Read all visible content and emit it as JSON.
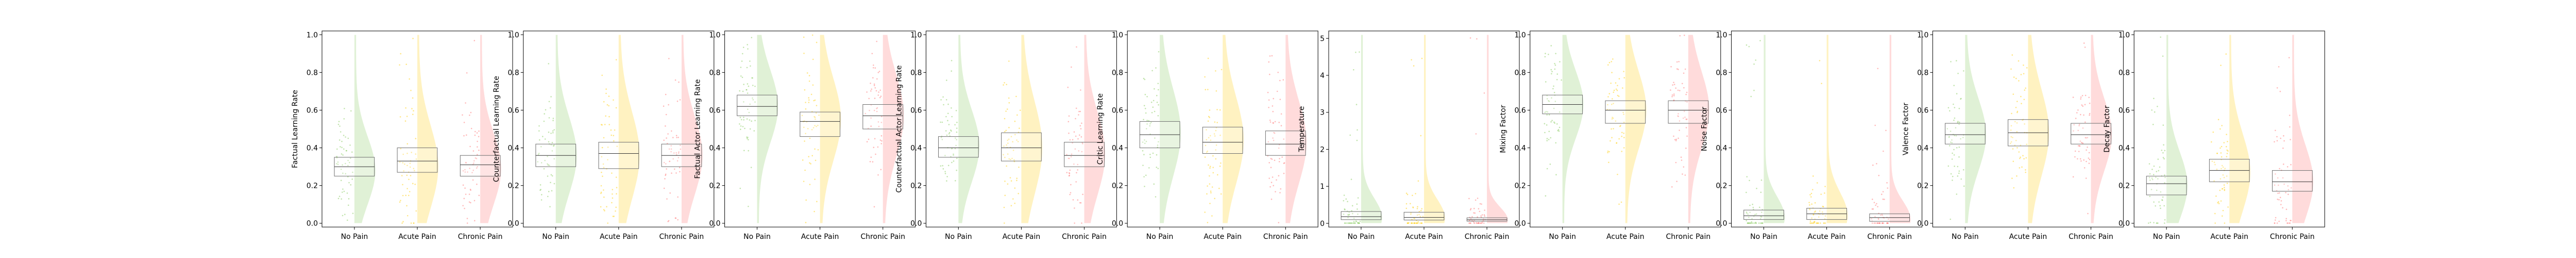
{
  "colors": {
    "No Pain": "#8fce6a",
    "Acute Pain": "#ffd21f",
    "Chronic Pain": "#ff7f7f",
    "box_edge": "#6e6e6e",
    "median": "#333333",
    "axis": "#000000"
  },
  "chart_data": [
    {
      "type": "box",
      "ylabel": "Factual Learning Rate",
      "categories": [
        "No Pain",
        "Acute Pain",
        "Chronic Pain"
      ],
      "ylim": [
        -0.02,
        1.02
      ],
      "yticks": [
        0.0,
        0.2,
        0.4,
        0.6,
        0.8,
        1.0
      ],
      "ytick_labels": [
        "0.0",
        "0.2",
        "0.4",
        "0.6",
        "0.8",
        "1.0"
      ],
      "series": [
        {
          "q1": 0.25,
          "median": 0.3,
          "q3": 0.35,
          "violin_peak": 0.28
        },
        {
          "q1": 0.27,
          "median": 0.33,
          "q3": 0.4,
          "violin_peak": 0.3
        },
        {
          "q1": 0.25,
          "median": 0.31,
          "q3": 0.36,
          "violin_peak": 0.29
        }
      ]
    },
    {
      "type": "box",
      "ylabel": "Counterfactual Learning Rate",
      "categories": [
        "No Pain",
        "Acute Pain",
        "Chronic Pain"
      ],
      "ylim": [
        -0.02,
        1.02
      ],
      "yticks": [
        0.0,
        0.2,
        0.4,
        0.6,
        0.8,
        1.0
      ],
      "ytick_labels": [
        "0.0",
        "0.2",
        "0.4",
        "0.6",
        "0.8",
        "1.0"
      ],
      "series": [
        {
          "q1": 0.3,
          "median": 0.36,
          "q3": 0.42,
          "violin_peak": 0.36
        },
        {
          "q1": 0.29,
          "median": 0.37,
          "q3": 0.43,
          "violin_peak": 0.36
        },
        {
          "q1": 0.3,
          "median": 0.36,
          "q3": 0.42,
          "violin_peak": 0.36
        }
      ]
    },
    {
      "type": "box",
      "ylabel": "Factual Actor Learning Rate",
      "categories": [
        "No Pain",
        "Acute Pain",
        "Chronic Pain"
      ],
      "ylim": [
        -0.02,
        1.02
      ],
      "yticks": [
        0.0,
        0.2,
        0.4,
        0.6,
        0.8,
        1.0
      ],
      "ytick_labels": [
        "0.0",
        "0.2",
        "0.4",
        "0.6",
        "0.8",
        "1.0"
      ],
      "series": [
        {
          "q1": 0.57,
          "median": 0.62,
          "q3": 0.68,
          "violin_peak": 0.62
        },
        {
          "q1": 0.46,
          "median": 0.54,
          "q3": 0.59,
          "violin_peak": 0.55
        },
        {
          "q1": 0.5,
          "median": 0.57,
          "q3": 0.63,
          "violin_peak": 0.57
        }
      ]
    },
    {
      "type": "box",
      "ylabel": "Counterfactual Actor Learning Rate",
      "categories": [
        "No Pain",
        "Acute Pain",
        "Chronic Pain"
      ],
      "ylim": [
        -0.02,
        1.02
      ],
      "yticks": [
        0.0,
        0.2,
        0.4,
        0.6,
        0.8,
        1.0
      ],
      "ytick_labels": [
        "0.0",
        "0.2",
        "0.4",
        "0.6",
        "0.8",
        "1.0"
      ],
      "series": [
        {
          "q1": 0.35,
          "median": 0.4,
          "q3": 0.46,
          "violin_peak": 0.41
        },
        {
          "q1": 0.33,
          "median": 0.4,
          "q3": 0.48,
          "violin_peak": 0.4
        },
        {
          "q1": 0.3,
          "median": 0.36,
          "q3": 0.43,
          "violin_peak": 0.37
        }
      ]
    },
    {
      "type": "box",
      "ylabel": "Critic Learning Rate",
      "categories": [
        "No Pain",
        "Acute Pain",
        "Chronic Pain"
      ],
      "ylim": [
        -0.02,
        1.02
      ],
      "yticks": [
        0.0,
        0.2,
        0.4,
        0.6,
        0.8,
        1.0
      ],
      "ytick_labels": [
        "0.0",
        "0.2",
        "0.4",
        "0.6",
        "0.8",
        "1.0"
      ],
      "series": [
        {
          "q1": 0.4,
          "median": 0.47,
          "q3": 0.54,
          "violin_peak": 0.48
        },
        {
          "q1": 0.37,
          "median": 0.43,
          "q3": 0.51,
          "violin_peak": 0.44
        },
        {
          "q1": 0.36,
          "median": 0.42,
          "q3": 0.49,
          "violin_peak": 0.43
        }
      ]
    },
    {
      "type": "box",
      "ylabel": "Temperature",
      "categories": [
        "No Pain",
        "Acute Pain",
        "Chronic Pain"
      ],
      "ylim": [
        -0.1,
        5.2
      ],
      "yticks": [
        0,
        1,
        2,
        3,
        4,
        5
      ],
      "ytick_labels": [
        "0",
        "1",
        "2",
        "3",
        "4",
        "5"
      ],
      "series": [
        {
          "q1": 0.1,
          "median": 0.18,
          "q3": 0.32,
          "violin_peak": 0.15
        },
        {
          "q1": 0.09,
          "median": 0.16,
          "q3": 0.3,
          "violin_peak": 0.14
        },
        {
          "q1": 0.06,
          "median": 0.1,
          "q3": 0.15,
          "violin_peak": 0.09
        }
      ]
    },
    {
      "type": "box",
      "ylabel": "Mixing Factor",
      "categories": [
        "No Pain",
        "Acute Pain",
        "Chronic Pain"
      ],
      "ylim": [
        -0.02,
        1.02
      ],
      "yticks": [
        0.0,
        0.2,
        0.4,
        0.6,
        0.8,
        1.0
      ],
      "ytick_labels": [
        "0.0",
        "0.2",
        "0.4",
        "0.6",
        "0.8",
        "1.0"
      ],
      "series": [
        {
          "q1": 0.58,
          "median": 0.63,
          "q3": 0.68,
          "violin_peak": 0.63
        },
        {
          "q1": 0.53,
          "median": 0.6,
          "q3": 0.65,
          "violin_peak": 0.6
        },
        {
          "q1": 0.53,
          "median": 0.6,
          "q3": 0.65,
          "violin_peak": 0.6
        }
      ]
    },
    {
      "type": "box",
      "ylabel": "Noise Factor",
      "categories": [
        "No Pain",
        "Acute Pain",
        "Chronic Pain"
      ],
      "ylim": [
        -0.02,
        1.02
      ],
      "yticks": [
        0.0,
        0.2,
        0.4,
        0.6,
        0.8,
        1.0
      ],
      "ytick_labels": [
        "0.0",
        "0.2",
        "0.4",
        "0.6",
        "0.8",
        "1.0"
      ],
      "series": [
        {
          "q1": 0.02,
          "median": 0.04,
          "q3": 0.07,
          "violin_peak": 0.03
        },
        {
          "q1": 0.02,
          "median": 0.05,
          "q3": 0.08,
          "violin_peak": 0.04
        },
        {
          "q1": 0.01,
          "median": 0.03,
          "q3": 0.05,
          "violin_peak": 0.02
        }
      ]
    },
    {
      "type": "box",
      "ylabel": "Valence Factor",
      "categories": [
        "No Pain",
        "Acute Pain",
        "Chronic Pain"
      ],
      "ylim": [
        -0.02,
        1.02
      ],
      "yticks": [
        0.0,
        0.2,
        0.4,
        0.6,
        0.8,
        1.0
      ],
      "ytick_labels": [
        "0.0",
        "0.2",
        "0.4",
        "0.6",
        "0.8",
        "1.0"
      ],
      "series": [
        {
          "q1": 0.42,
          "median": 0.47,
          "q3": 0.53,
          "violin_peak": 0.47
        },
        {
          "q1": 0.41,
          "median": 0.48,
          "q3": 0.55,
          "violin_peak": 0.48
        },
        {
          "q1": 0.42,
          "median": 0.47,
          "q3": 0.53,
          "violin_peak": 0.47
        }
      ]
    },
    {
      "type": "box",
      "ylabel": "Decay Factor",
      "categories": [
        "No Pain",
        "Acute Pain",
        "Chronic Pain"
      ],
      "ylim": [
        -0.02,
        1.02
      ],
      "yticks": [
        0.0,
        0.2,
        0.4,
        0.6,
        0.8,
        1.0
      ],
      "ytick_labels": [
        "0.0",
        "0.2",
        "0.4",
        "0.6",
        "0.8",
        "1.0"
      ],
      "series": [
        {
          "q1": 0.15,
          "median": 0.21,
          "q3": 0.25,
          "violin_peak": 0.2
        },
        {
          "q1": 0.22,
          "median": 0.28,
          "q3": 0.34,
          "violin_peak": 0.27
        },
        {
          "q1": 0.17,
          "median": 0.22,
          "q3": 0.28,
          "violin_peak": 0.22
        }
      ]
    }
  ]
}
